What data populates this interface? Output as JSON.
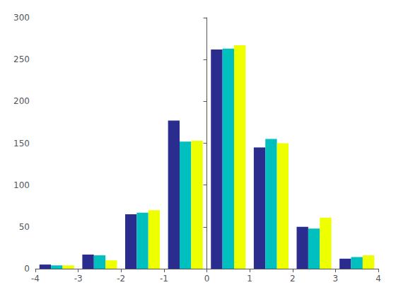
{
  "chart_data": {
    "type": "histogram",
    "bins": [
      -4,
      -3,
      -2,
      -1,
      0,
      1,
      2,
      3,
      4
    ],
    "series": [
      {
        "color": "#2B2D8E",
        "values": [
          5,
          17,
          65,
          177,
          262,
          145,
          50,
          12
        ]
      },
      {
        "color": "#00BFBF",
        "values": [
          4,
          16,
          67,
          152,
          263,
          155,
          48,
          14
        ]
      },
      {
        "color": "#EEFF00",
        "values": [
          4,
          10,
          70,
          153,
          267,
          150,
          61,
          16
        ]
      }
    ],
    "xlim": [
      -4,
      4
    ],
    "xticks": [
      -4,
      -3,
      -2,
      -1,
      0,
      1,
      2,
      3,
      4
    ],
    "ylim": [
      0,
      300
    ],
    "yticks": [
      0,
      50,
      100,
      150,
      200,
      250,
      300
    ],
    "grid": false
  }
}
